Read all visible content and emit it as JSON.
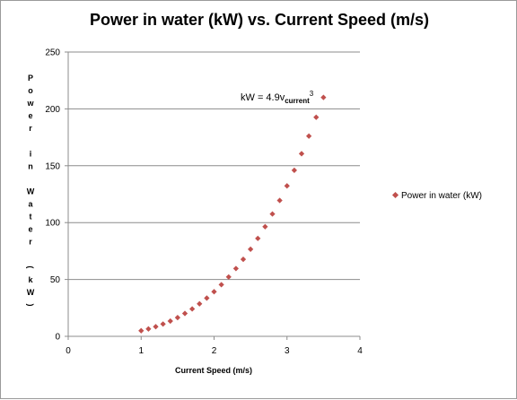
{
  "chart_data": {
    "type": "scatter",
    "title": "Power in water (kW) vs. Current Speed (m/s)",
    "xlabel": "Current Speed (m/s)",
    "ylabel": "Power in Water (kW)",
    "xlim": [
      0,
      4
    ],
    "ylim": [
      0,
      250
    ],
    "x_ticks": [
      0,
      1,
      2,
      3,
      4
    ],
    "y_ticks": [
      0,
      50,
      100,
      150,
      200,
      250
    ],
    "x_tick_labels": [
      "0",
      "1",
      "2",
      "3",
      "4"
    ],
    "y_tick_labels": [
      "0",
      "50",
      "100",
      "150",
      "200",
      "250"
    ],
    "grid": "horizontal major gridlines",
    "legend_position": "right",
    "marker_color": "#c0504d",
    "series": [
      {
        "name": "Power in water (kW)",
        "x": [
          1.0,
          1.1,
          1.2,
          1.3,
          1.4,
          1.5,
          1.6,
          1.7,
          1.8,
          1.9,
          2.0,
          2.1,
          2.2,
          2.3,
          2.4,
          2.5,
          2.6,
          2.7,
          2.8,
          2.9,
          3.0,
          3.1,
          3.2,
          3.3,
          3.4,
          3.5
        ],
        "y": [
          4.9,
          6.5,
          8.5,
          10.8,
          13.4,
          16.5,
          20.1,
          24.1,
          28.6,
          33.6,
          39.2,
          45.4,
          52.2,
          59.6,
          67.7,
          76.6,
          86.1,
          96.4,
          107.6,
          119.5,
          132.3,
          146.0,
          160.6,
          176.1,
          192.6,
          210.1
        ]
      }
    ],
    "annotation": {
      "prefix": "kW = 4.9v",
      "subscript": "current",
      "superscript": "3",
      "at_x": 3.5,
      "at_y": 210.1
    }
  }
}
